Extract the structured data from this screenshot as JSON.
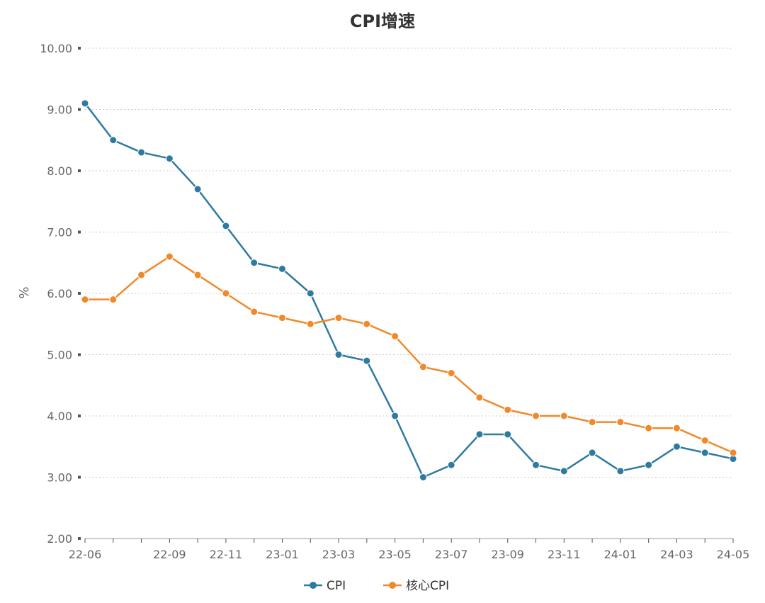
{
  "chart_data": {
    "type": "line",
    "title": "CPI增速",
    "ylabel": "%",
    "xlabel": "",
    "ylim": [
      2,
      10
    ],
    "yticks": [
      "2.00",
      "3.00",
      "4.00",
      "5.00",
      "6.00",
      "7.00",
      "8.00",
      "9.00",
      "10.00"
    ],
    "x": [
      "22-06",
      "22-07",
      "22-08",
      "22-09",
      "22-10",
      "22-11",
      "22-12",
      "23-01",
      "23-02",
      "23-03",
      "23-04",
      "23-05",
      "23-06",
      "23-07",
      "23-08",
      "23-09",
      "23-10",
      "23-11",
      "23-12",
      "24-01",
      "24-02",
      "24-03",
      "24-04",
      "24-05"
    ],
    "xtick_labels": [
      "22-06",
      "",
      "",
      "22-09",
      "",
      "22-11",
      "",
      "23-01",
      "",
      "23-03",
      "",
      "23-05",
      "",
      "23-07",
      "",
      "23-09",
      "",
      "23-11",
      "",
      "24-01",
      "",
      "24-03",
      "",
      "24-05"
    ],
    "grid": true,
    "legend_position": "bottom-center",
    "series": [
      {
        "name": "CPI",
        "color": "#2e7aa0",
        "values": [
          9.1,
          8.5,
          8.3,
          8.2,
          7.7,
          7.1,
          6.5,
          6.4,
          6.0,
          5.0,
          4.9,
          4.0,
          3.0,
          3.2,
          3.7,
          3.7,
          3.2,
          3.1,
          3.4,
          3.1,
          3.2,
          3.5,
          3.4,
          3.3
        ]
      },
      {
        "name": "核心CPI",
        "color": "#f0892a",
        "values": [
          5.9,
          5.9,
          6.3,
          6.6,
          6.3,
          6.0,
          5.7,
          5.6,
          5.5,
          5.6,
          5.5,
          5.3,
          4.8,
          4.7,
          4.3,
          4.1,
          4.0,
          4.0,
          3.9,
          3.9,
          3.8,
          3.8,
          3.6,
          3.4
        ]
      }
    ]
  }
}
